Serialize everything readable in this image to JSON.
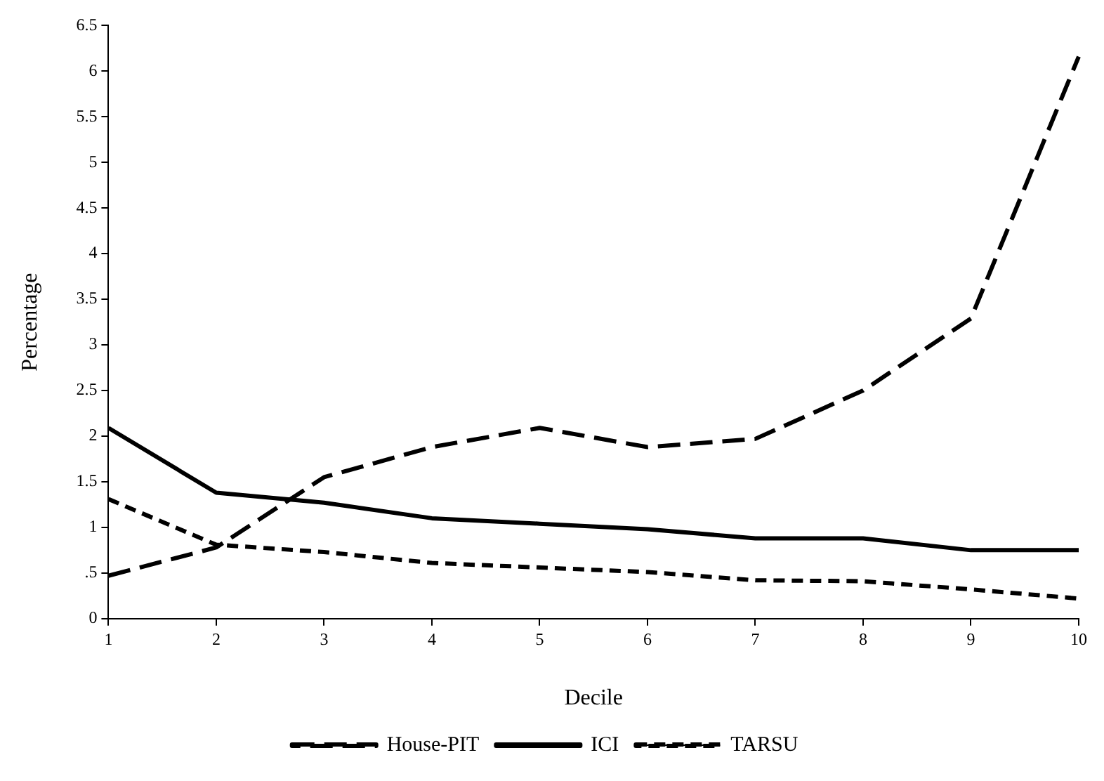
{
  "chart_data": {
    "type": "line",
    "xlabel": "Decile",
    "ylabel": "Percentage",
    "x": [
      1,
      2,
      3,
      4,
      5,
      6,
      7,
      8,
      9,
      10
    ],
    "xlim": [
      1,
      10
    ],
    "xticks": [
      1,
      2,
      3,
      4,
      5,
      6,
      7,
      8,
      9,
      10
    ],
    "ylim": [
      0,
      6.5
    ],
    "yticks": [
      0,
      {
        "value": 0.5,
        "label": ".5"
      },
      1,
      1.5,
      2,
      2.5,
      3,
      3.5,
      4,
      4.5,
      5,
      5.5,
      6,
      6.5
    ],
    "grid": false,
    "legend": "bottom",
    "marker": "none",
    "series": [
      {
        "name": "House-PIT",
        "color": "#000000",
        "line_style": "dashed",
        "values": [
          0.47,
          0.78,
          1.55,
          1.88,
          2.09,
          1.88,
          1.97,
          2.5,
          3.29,
          6.16
        ]
      },
      {
        "name": "ICI",
        "color": "#000000",
        "line_style": "solid",
        "values": [
          2.09,
          1.38,
          1.27,
          1.1,
          1.04,
          0.98,
          0.88,
          0.88,
          0.75,
          0.75
        ]
      },
      {
        "name": "TARSU",
        "color": "#000000",
        "line_style": "dashed",
        "values": [
          1.31,
          0.81,
          0.73,
          0.61,
          0.56,
          0.51,
          0.42,
          0.41,
          0.32,
          0.22
        ]
      }
    ]
  }
}
